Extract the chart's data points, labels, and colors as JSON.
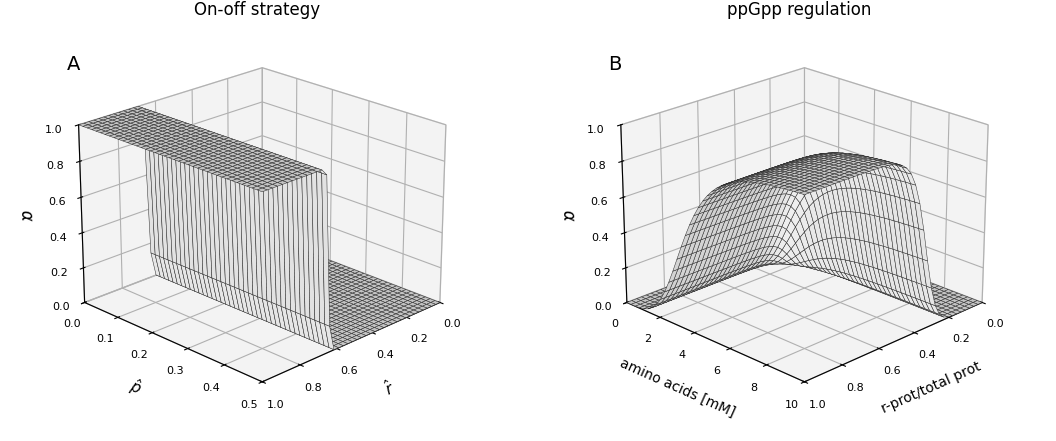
{
  "title_A": "On-off strategy",
  "title_B": "ppGpp regulation",
  "label_A": "A",
  "label_B": "B",
  "xlabel_A": "$\\hat{r}$",
  "xlabel_B": "r-prot/total prot",
  "ylabel_A": "$\\hat{p}$",
  "ylabel_B": "amino acids [mM]",
  "zlabel": "$\\alpha$",
  "r_min": 0.0,
  "r_max": 1.0,
  "p_min": 0.0,
  "p_max": 0.5,
  "aa_min": 0.0,
  "aa_max": 10.0,
  "alpha_min": 0.0,
  "alpha_max": 1.0,
  "r_ticks_A": [
    0.0,
    0.2,
    0.4,
    0.6,
    0.8,
    1.0
  ],
  "p_ticks": [
    0.0,
    0.1,
    0.2,
    0.3,
    0.4,
    0.5
  ],
  "r_ticks_B": [
    0.0,
    0.2,
    0.4,
    0.6,
    0.8,
    1.0
  ],
  "aa_ticks": [
    0,
    2,
    4,
    6,
    8,
    10
  ],
  "alpha_ticks": [
    0.0,
    0.2,
    0.4,
    0.6,
    0.8,
    1.0
  ],
  "n_grid": 40,
  "surface_color": "white",
  "surface_edgecolor": "#2a2a2a",
  "surface_linewidth": 0.35,
  "surface_alpha": 1.0,
  "elev_A": 22,
  "azim_A": -135,
  "elev_B": 22,
  "azim_B": -135,
  "r_threshold": 0.65,
  "onoff_sharpness": 200,
  "ppgpp_n_aa": 4,
  "ppgpp_K_aa": 3.5,
  "ppgpp_n_r": 10,
  "ppgpp_K_r": 0.35,
  "background_color": "white",
  "pane_color": "#e8e8e8",
  "pane_edge_color": "#bbbbbb"
}
